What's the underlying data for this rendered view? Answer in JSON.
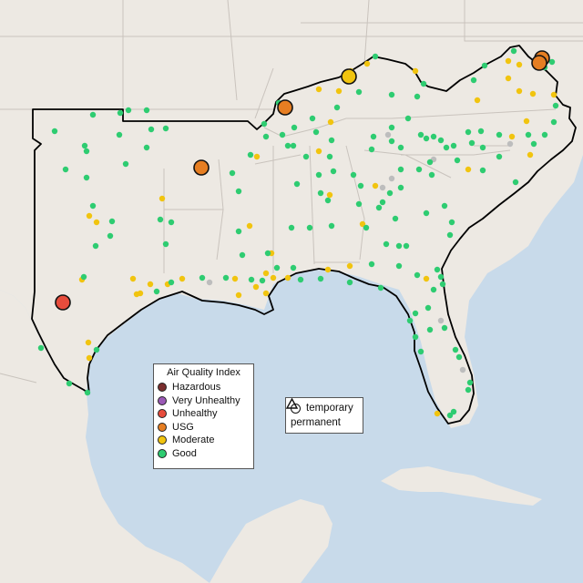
{
  "map": {
    "colors": {
      "land": "#ede9e3",
      "water": "#c8daea",
      "outline": "#000000",
      "borders": "#c9c3bd",
      "hazardous": "#7a2e2e",
      "very_unhealthy": "#9b59b6",
      "unhealthy": "#e74c3c",
      "usg": "#e67e22",
      "moderate": "#f1c40f",
      "good": "#2ecc71",
      "no_data": "#bdbdbd"
    }
  },
  "legend_aqi": {
    "title": "Air Quality Index",
    "items": [
      {
        "label": "Hazardous",
        "color": "#7a2e2e"
      },
      {
        "label": "Very Unhealthy",
        "color": "#9b59b6"
      },
      {
        "label": "Unhealthy",
        "color": "#e74c3c"
      },
      {
        "label": "USG",
        "color": "#e67e22"
      },
      {
        "label": "Moderate",
        "color": "#f1c40f"
      },
      {
        "label": "Good",
        "color": "#2ecc71"
      }
    ]
  },
  "legend_monitor": {
    "items": [
      {
        "label": "temporary",
        "icon": "circle-icon"
      },
      {
        "label": "permanent",
        "icon": "triangle-icon"
      }
    ]
  }
}
